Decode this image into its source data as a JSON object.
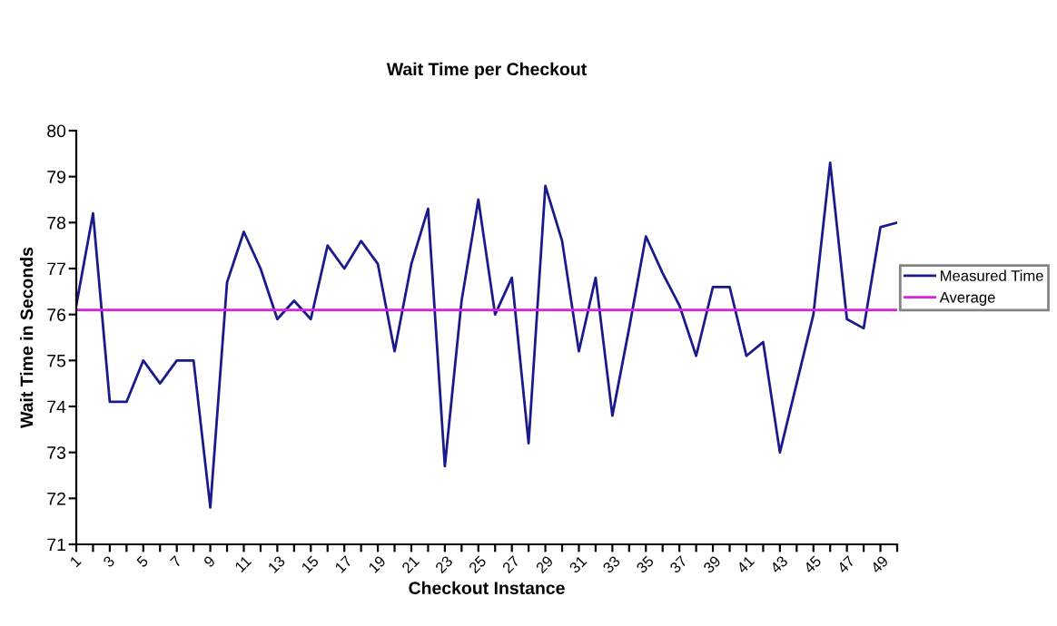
{
  "chart_data": {
    "type": "line",
    "title": "Wait Time per Checkout",
    "xlabel": "Checkout Instance",
    "ylabel": "Wait Time in Seconds",
    "categories": [
      "1",
      null,
      "3",
      null,
      "5",
      null,
      "7",
      null,
      "9",
      null,
      "11",
      null,
      "13",
      null,
      "15",
      null,
      "17",
      null,
      "19",
      null,
      "21",
      null,
      "23",
      null,
      "25",
      null,
      "27",
      null,
      "29",
      null,
      "31",
      null,
      "33",
      null,
      "35",
      null,
      "37",
      null,
      "39",
      null,
      "41",
      null,
      "43",
      null,
      "45",
      null,
      "47",
      null,
      "49",
      null
    ],
    "series": [
      {
        "name": "Measured Time",
        "color": "#1a1a8c",
        "values": [
          76.2,
          78.2,
          74.1,
          74.1,
          75.0,
          74.5,
          75.0,
          75.0,
          71.8,
          76.7,
          77.8,
          77.0,
          75.9,
          76.3,
          75.9,
          77.5,
          77.0,
          77.6,
          77.1,
          75.2,
          77.1,
          78.3,
          72.7,
          76.3,
          78.5,
          76.0,
          76.8,
          73.2,
          78.8,
          77.6,
          75.2,
          76.8,
          73.8,
          75.7,
          77.7,
          76.9,
          76.2,
          75.1,
          76.6,
          76.6,
          75.1,
          75.4,
          73.0,
          74.5,
          76.0,
          79.3,
          75.9,
          75.7,
          77.9,
          78.0
        ]
      }
    ],
    "ref_lines": [
      {
        "axis": "y",
        "value": 76.1,
        "label": "Average",
        "color": "#e020e0"
      }
    ],
    "ylim": [
      71,
      80
    ],
    "yticks": [
      71,
      72,
      73,
      74,
      75,
      76,
      77,
      78,
      79,
      80
    ],
    "grid": false,
    "legend": "right",
    "marker": "none",
    "line_style": "solid"
  }
}
